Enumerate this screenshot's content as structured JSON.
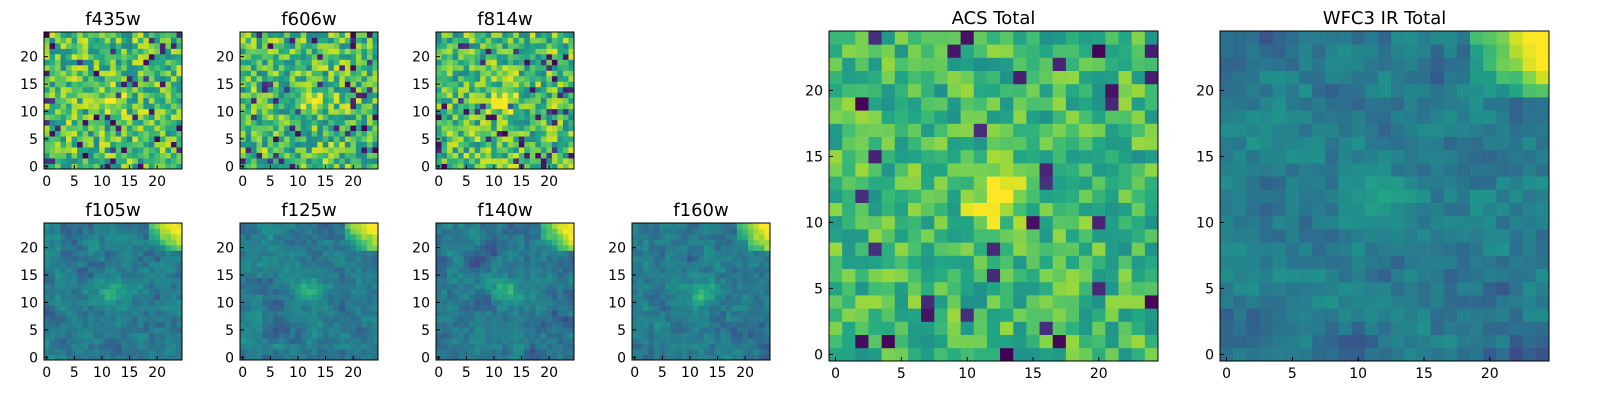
{
  "figure": {
    "background": "#ffffff",
    "colormap": "viridis"
  },
  "chart_data": [
    {
      "type": "heatmap",
      "title": "f435w",
      "grid_size": 25,
      "x_ticks": [
        "0",
        "5",
        "10",
        "15",
        "20"
      ],
      "y_ticks": [
        "0",
        "5",
        "10",
        "15",
        "20"
      ],
      "seed": 11,
      "pattern": "acs_band"
    },
    {
      "type": "heatmap",
      "title": "f606w",
      "grid_size": 25,
      "x_ticks": [
        "0",
        "5",
        "10",
        "15",
        "20"
      ],
      "y_ticks": [
        "0",
        "5",
        "10",
        "15",
        "20"
      ],
      "seed": 23,
      "pattern": "acs_band"
    },
    {
      "type": "heatmap",
      "title": "f814w",
      "grid_size": 25,
      "x_ticks": [
        "0",
        "5",
        "10",
        "15",
        "20"
      ],
      "y_ticks": [
        "0",
        "5",
        "10",
        "15",
        "20"
      ],
      "seed": 37,
      "pattern": "acs_band"
    },
    {
      "type": "heatmap",
      "title": "f105w",
      "grid_size": 25,
      "x_ticks": [
        "0",
        "5",
        "10",
        "15",
        "20"
      ],
      "y_ticks": [
        "0",
        "5",
        "10",
        "15",
        "20"
      ],
      "seed": 41,
      "pattern": "ir_band"
    },
    {
      "type": "heatmap",
      "title": "f125w",
      "grid_size": 25,
      "x_ticks": [
        "0",
        "5",
        "10",
        "15",
        "20"
      ],
      "y_ticks": [
        "0",
        "5",
        "10",
        "15",
        "20"
      ],
      "seed": 53,
      "pattern": "ir_band"
    },
    {
      "type": "heatmap",
      "title": "f140w",
      "grid_size": 25,
      "x_ticks": [
        "0",
        "5",
        "10",
        "15",
        "20"
      ],
      "y_ticks": [
        "0",
        "5",
        "10",
        "15",
        "20"
      ],
      "seed": 67,
      "pattern": "ir_band"
    },
    {
      "type": "heatmap",
      "title": "f160w",
      "grid_size": 25,
      "x_ticks": [
        "0",
        "5",
        "10",
        "15",
        "20"
      ],
      "y_ticks": [
        "0",
        "5",
        "10",
        "15",
        "20"
      ],
      "seed": 79,
      "pattern": "ir_band"
    },
    {
      "type": "heatmap",
      "title": "ACS Total",
      "grid_size": 25,
      "x_ticks": [
        "0",
        "5",
        "10",
        "15",
        "20"
      ],
      "y_ticks": [
        "0",
        "5",
        "10",
        "15",
        "20"
      ],
      "seed": 97,
      "pattern": "acs_total"
    },
    {
      "type": "heatmap",
      "title": "WFC3 IR Total",
      "grid_size": 25,
      "x_ticks": [
        "0",
        "5",
        "10",
        "15",
        "20"
      ],
      "y_ticks": [
        "0",
        "5",
        "10",
        "15",
        "20"
      ],
      "seed": 113,
      "pattern": "ir_total"
    }
  ]
}
